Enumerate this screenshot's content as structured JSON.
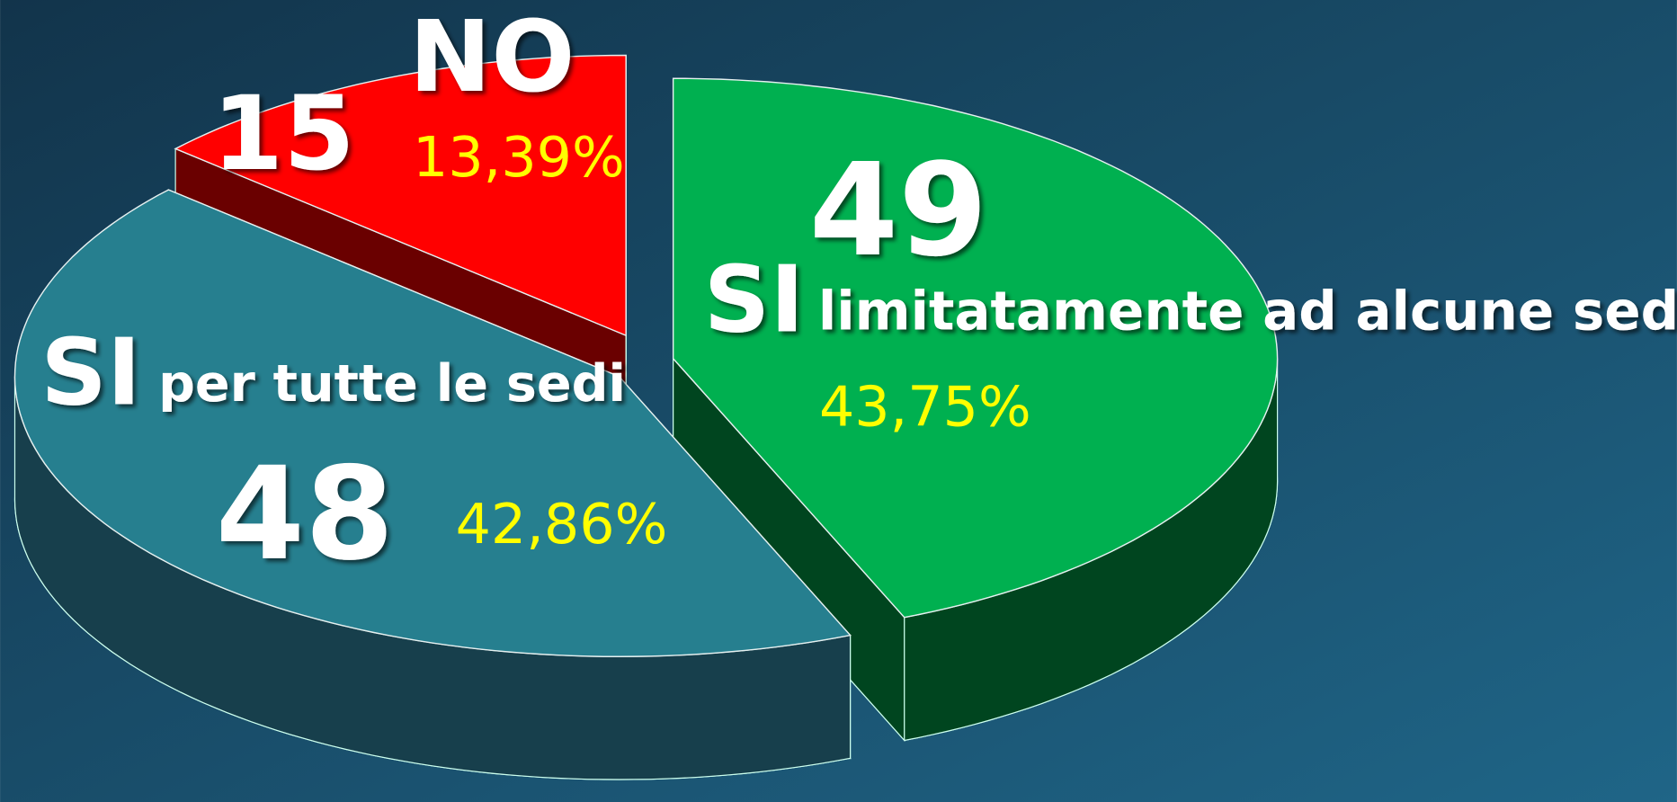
{
  "chart_data": {
    "type": "pie3d",
    "categories": [
      "NO",
      "SI",
      "SI"
    ],
    "category_details": [
      null,
      "limitatamente ad alcune sedi",
      "per tutte le sedi"
    ],
    "values": [
      15,
      49,
      48
    ],
    "percentages": [
      13.39,
      43.75,
      42.86
    ],
    "percentage_labels": [
      "13,39%",
      "43,75%",
      "42,86%"
    ],
    "colors": [
      "#ff0000",
      "#00b050",
      "#267f8f"
    ],
    "side_colors": [
      "#6a0000",
      "#00451f",
      "#173f4c"
    ]
  }
}
